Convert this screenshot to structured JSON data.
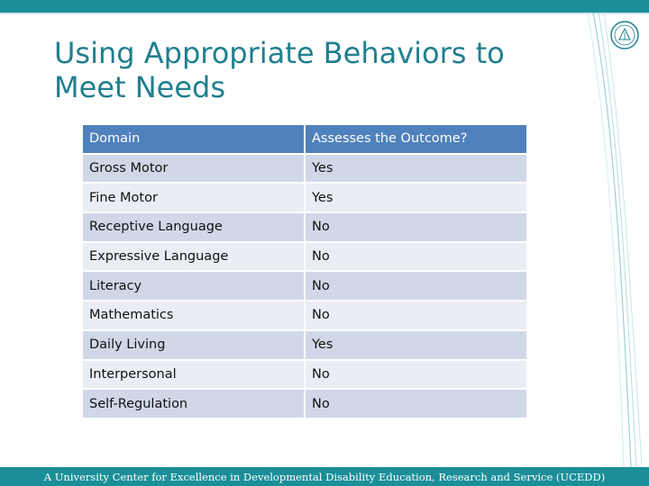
{
  "slide": {
    "title": "Using Appropriate Behaviors to Meet Needs",
    "footer": "A University Center for Excellence in Developmental Disability Education, Research and Service (UCEDD)"
  },
  "table": {
    "headers": [
      "Domain",
      "Assesses the Outcome?"
    ],
    "rows": [
      [
        "Gross Motor",
        "Yes"
      ],
      [
        "Fine Motor",
        "Yes"
      ],
      [
        "Receptive Language",
        "No"
      ],
      [
        "Expressive Language",
        "No"
      ],
      [
        "Literacy",
        "No"
      ],
      [
        "Mathematics",
        "No"
      ],
      [
        "Daily Living",
        "Yes"
      ],
      [
        "Interpersonal",
        "No"
      ],
      [
        "Self-Regulation",
        "No"
      ]
    ]
  },
  "theme": {
    "accent": "#1b8f98",
    "header_fill": "#4f81bd",
    "row_fill_dark": "#d0d8e8",
    "row_fill_light": "#e9edf4"
  },
  "icons": {
    "logo": "university-seal-icon"
  }
}
